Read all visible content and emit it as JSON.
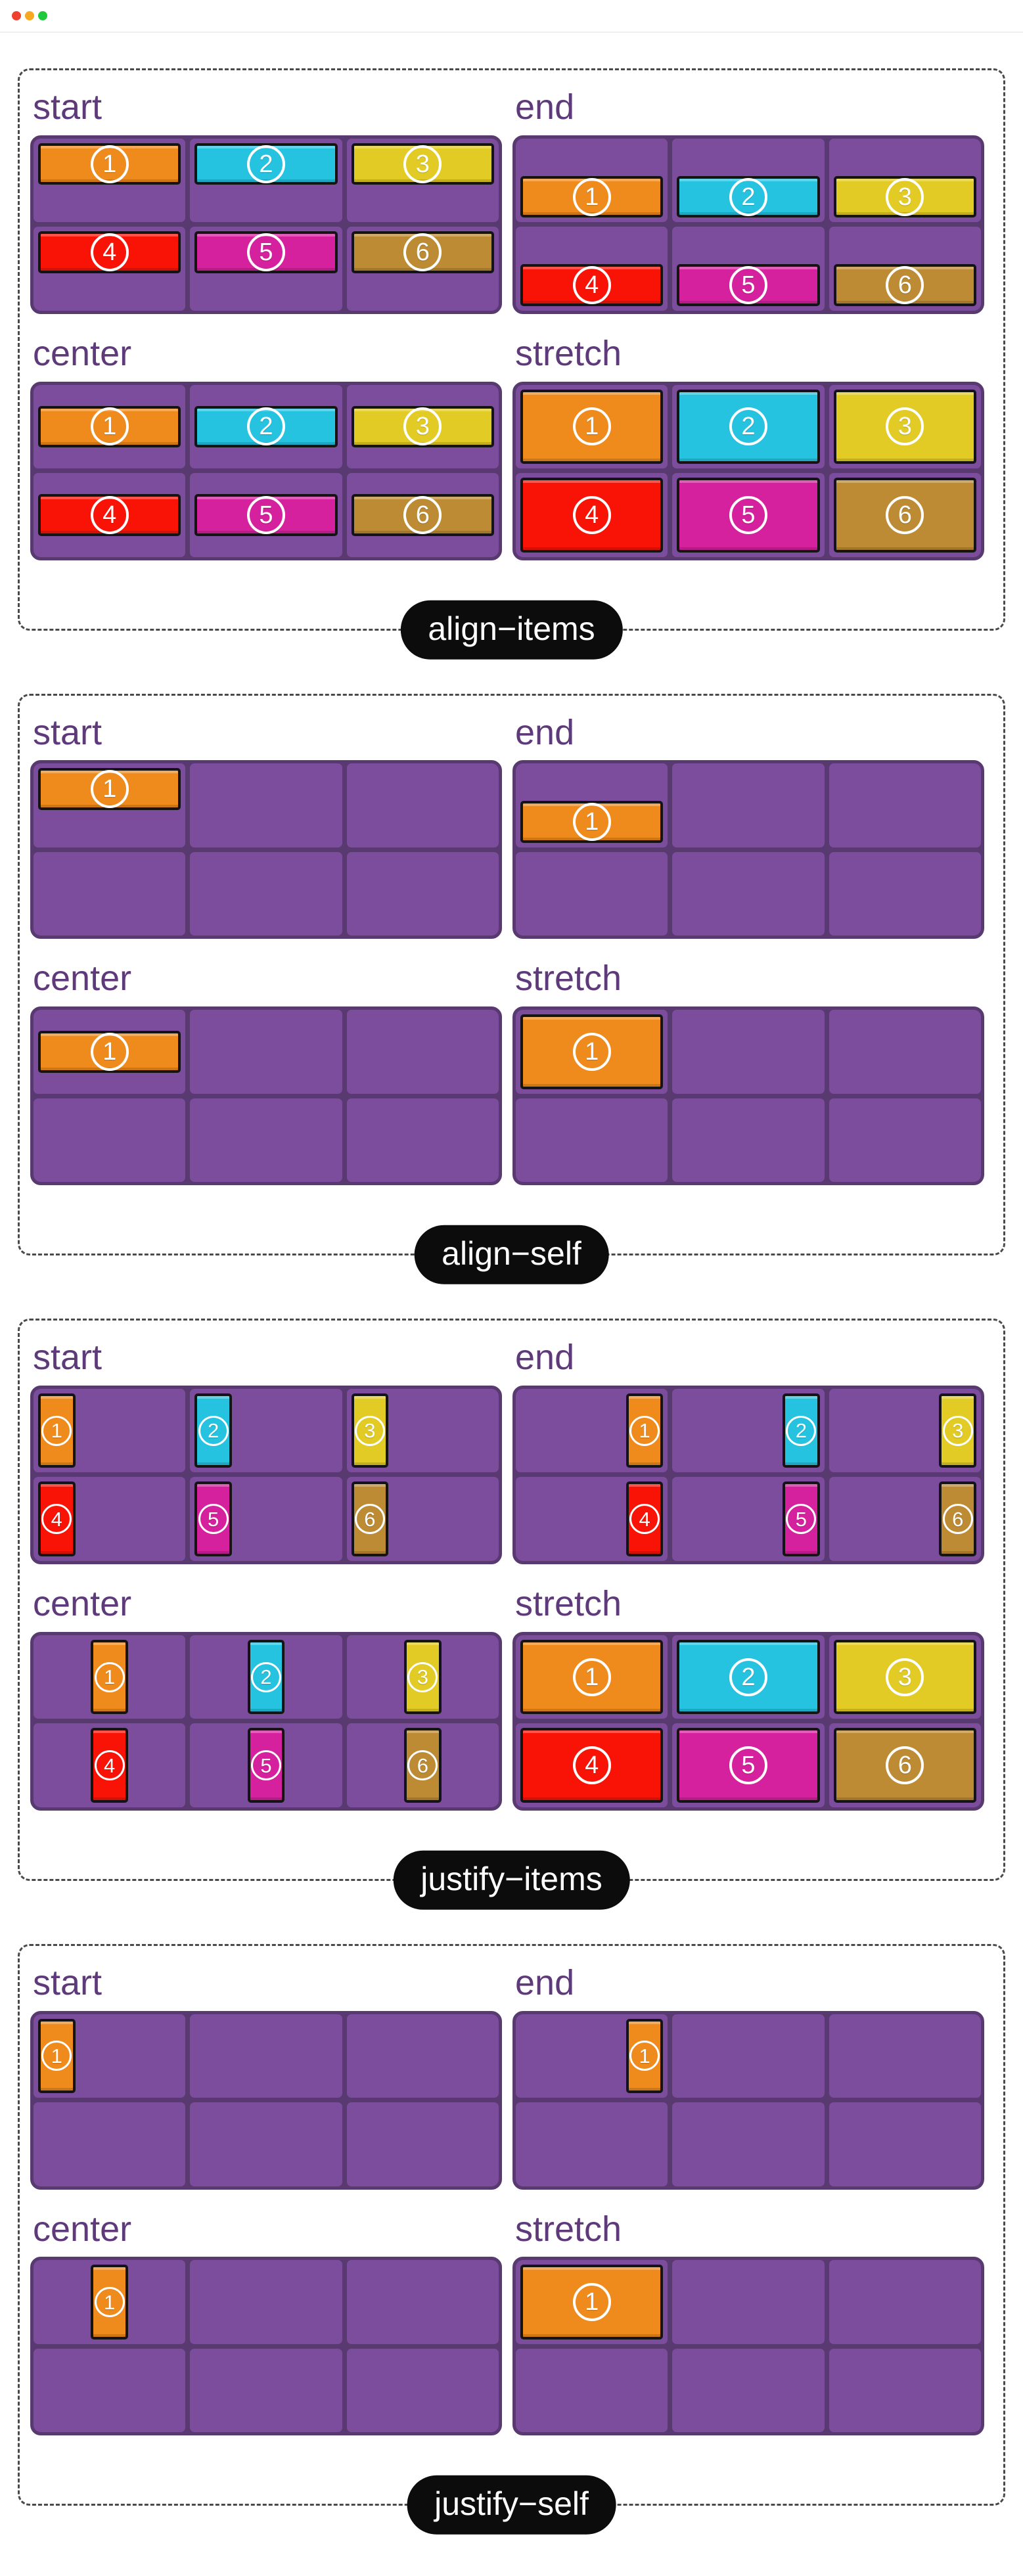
{
  "window": {
    "controls": [
      {
        "name": "close",
        "color": "#ee4130"
      },
      {
        "name": "minimize",
        "color": "#f6a820"
      },
      {
        "name": "zoom",
        "color": "#1fc93c"
      }
    ]
  },
  "colors": {
    "cell_purple": "#7c4d9c",
    "grid_frame_purple": "#583a70",
    "heading_purple": "#5e3a7b",
    "pill_background": "#0c0c0c",
    "pill_text": "#ffffff",
    "item_border": "#141414",
    "dashed_border": "#4a4a4a",
    "page_background": "#ffffff"
  },
  "grid": {
    "rows": 2,
    "columns": 3
  },
  "items": [
    {
      "number": "1",
      "color": "#ef8a1c"
    },
    {
      "number": "2",
      "color": "#26c3e0"
    },
    {
      "number": "3",
      "color": "#e2cb24"
    },
    {
      "number": "4",
      "color": "#f91307"
    },
    {
      "number": "5",
      "color": "#d5219d"
    },
    {
      "number": "6",
      "color": "#bd8b33"
    }
  ],
  "sections": [
    {
      "slug": "align-items",
      "title": "align−items",
      "axis": "align",
      "scope": "items",
      "panels": [
        {
          "heading": "start",
          "mode": "start"
        },
        {
          "heading": "end",
          "mode": "end"
        },
        {
          "heading": "center",
          "mode": "center"
        },
        {
          "heading": "stretch",
          "mode": "stretch"
        }
      ]
    },
    {
      "slug": "align-self",
      "title": "align−self",
      "axis": "align",
      "scope": "self",
      "panels": [
        {
          "heading": "start",
          "mode": "start"
        },
        {
          "heading": "end",
          "mode": "end"
        },
        {
          "heading": "center",
          "mode": "center"
        },
        {
          "heading": "stretch",
          "mode": "stretch"
        }
      ]
    },
    {
      "slug": "justify-items",
      "title": "justify−items",
      "axis": "justify",
      "scope": "items",
      "panels": [
        {
          "heading": "start",
          "mode": "start"
        },
        {
          "heading": "end",
          "mode": "end"
        },
        {
          "heading": "center",
          "mode": "center"
        },
        {
          "heading": "stretch",
          "mode": "stretch"
        }
      ]
    },
    {
      "slug": "justify-self",
      "title": "justify−self",
      "axis": "justify",
      "scope": "self",
      "panels": [
        {
          "heading": "start",
          "mode": "start"
        },
        {
          "heading": "end",
          "mode": "end"
        },
        {
          "heading": "center",
          "mode": "center"
        },
        {
          "heading": "stretch",
          "mode": "stretch"
        }
      ]
    }
  ]
}
